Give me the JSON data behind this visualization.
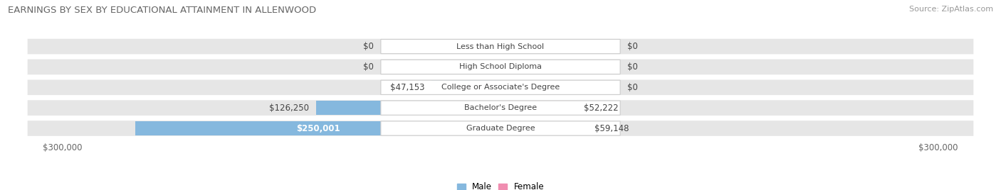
{
  "title": "EARNINGS BY SEX BY EDUCATIONAL ATTAINMENT IN ALLENWOOD",
  "source": "Source: ZipAtlas.com",
  "categories": [
    "Less than High School",
    "High School Diploma",
    "College or Associate's Degree",
    "Bachelor's Degree",
    "Graduate Degree"
  ],
  "male_values": [
    0,
    0,
    47153,
    126250,
    250001
  ],
  "female_values": [
    0,
    0,
    0,
    52222,
    59148
  ],
  "male_labels": [
    "$0",
    "$0",
    "$47,153",
    "$126,250",
    "$250,001"
  ],
  "female_labels": [
    "$0",
    "$0",
    "$0",
    "$52,222",
    "$59,148"
  ],
  "male_color": "#85b8de",
  "female_color": "#f08db0",
  "row_bg_color": "#e6e6e6",
  "background_color": "#ffffff",
  "xlim": 300000,
  "title_fontsize": 9.5,
  "label_fontsize": 8.5,
  "source_fontsize": 8
}
